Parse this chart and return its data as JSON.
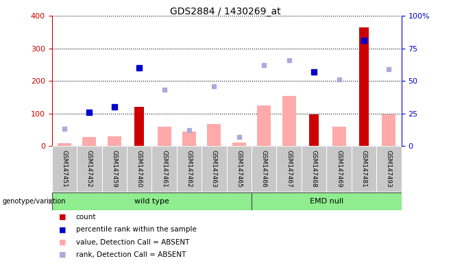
{
  "title": "GDS2884 / 1430269_at",
  "samples": [
    "GSM147451",
    "GSM147452",
    "GSM147459",
    "GSM147460",
    "GSM147461",
    "GSM147462",
    "GSM147463",
    "GSM147465",
    "GSM147466",
    "GSM147467",
    "GSM147468",
    "GSM147469",
    "GSM147481",
    "GSM147493"
  ],
  "count_values": [
    null,
    null,
    null,
    120,
    null,
    null,
    null,
    null,
    null,
    null,
    97,
    null,
    365,
    null
  ],
  "rank_pct": [
    null,
    26,
    30,
    60,
    null,
    null,
    null,
    null,
    null,
    null,
    57,
    null,
    81,
    null
  ],
  "absent_value": [
    8,
    27,
    30,
    null,
    60,
    45,
    68,
    10,
    125,
    153,
    null,
    60,
    null,
    98
  ],
  "absent_rank_pct": [
    13,
    null,
    null,
    null,
    43,
    12,
    46,
    7,
    62,
    66,
    null,
    51,
    null,
    59
  ],
  "groups": [
    {
      "label": "wild type",
      "start": 0,
      "end": 7,
      "color": "#90ee90"
    },
    {
      "label": "EMD null",
      "start": 8,
      "end": 13,
      "color": "#90ee90"
    }
  ],
  "left_ylim": [
    0,
    400
  ],
  "right_ylim": [
    0,
    100
  ],
  "left_yticks": [
    0,
    100,
    200,
    300,
    400
  ],
  "right_yticks": [
    0,
    25,
    50,
    75,
    100
  ],
  "right_yticklabels": [
    "0",
    "25",
    "50",
    "75",
    "100%"
  ],
  "left_axis_color": "#cc0000",
  "right_axis_color": "#0000cc",
  "bar_color_count": "#cc0000",
  "bar_color_absent_value": "#ffaaaa",
  "dot_color_rank": "#0000cc",
  "dot_color_absent_rank": "#aaaadd",
  "legend_items": [
    {
      "color": "#cc0000",
      "label": "count"
    },
    {
      "color": "#0000cc",
      "label": "percentile rank within the sample"
    },
    {
      "color": "#ffaaaa",
      "label": "value, Detection Call = ABSENT"
    },
    {
      "color": "#aaaadd",
      "label": "rank, Detection Call = ABSENT"
    }
  ]
}
